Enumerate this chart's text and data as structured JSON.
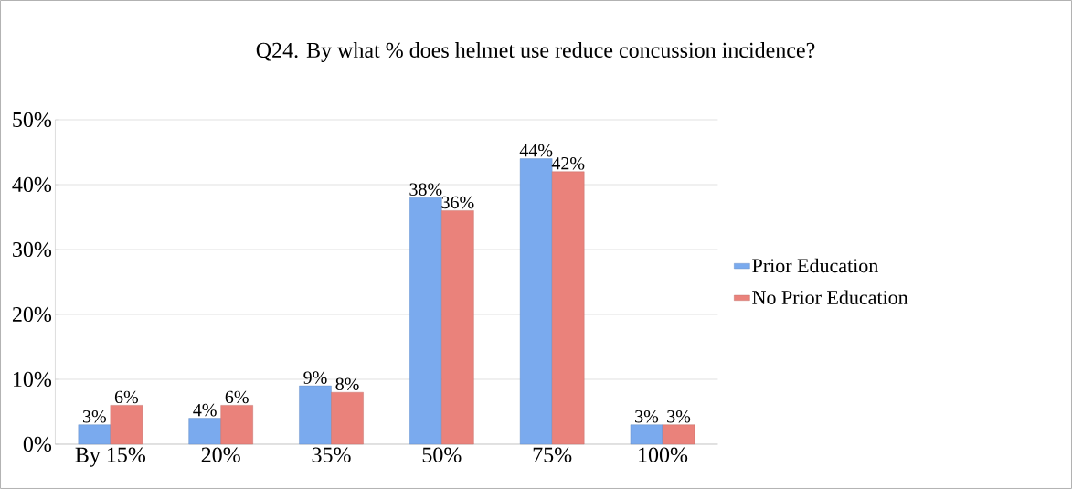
{
  "chart_data": {
    "type": "bar",
    "title": "Q24.  By what % does helmet use reduce concussion incidence?",
    "categories": [
      "By 15%",
      "20%",
      "35%",
      "50%",
      "75%",
      "100%"
    ],
    "series": [
      {
        "name": "Prior Education",
        "color": "#7aaaee",
        "values": [
          3,
          4,
          9,
          38,
          44,
          3
        ],
        "value_labels": [
          "3%",
          "4%",
          "9%",
          "38%",
          "44%",
          "3%"
        ]
      },
      {
        "name": "No Prior Education",
        "color": "#ea827b",
        "values": [
          6,
          6,
          8,
          36,
          42,
          3
        ],
        "value_labels": [
          "6%",
          "6%",
          "8%",
          "36%",
          "42%",
          "3%"
        ]
      }
    ],
    "ylim": [
      0,
      50
    ],
    "yticks": [
      {
        "value": 0,
        "label": "0%"
      },
      {
        "value": 10,
        "label": "10%"
      },
      {
        "value": 20,
        "label": "20%"
      },
      {
        "value": 30,
        "label": "30%"
      },
      {
        "value": 40,
        "label": "40%"
      },
      {
        "value": 50,
        "label": "50%"
      }
    ],
    "grid": "y",
    "legend": "right"
  }
}
